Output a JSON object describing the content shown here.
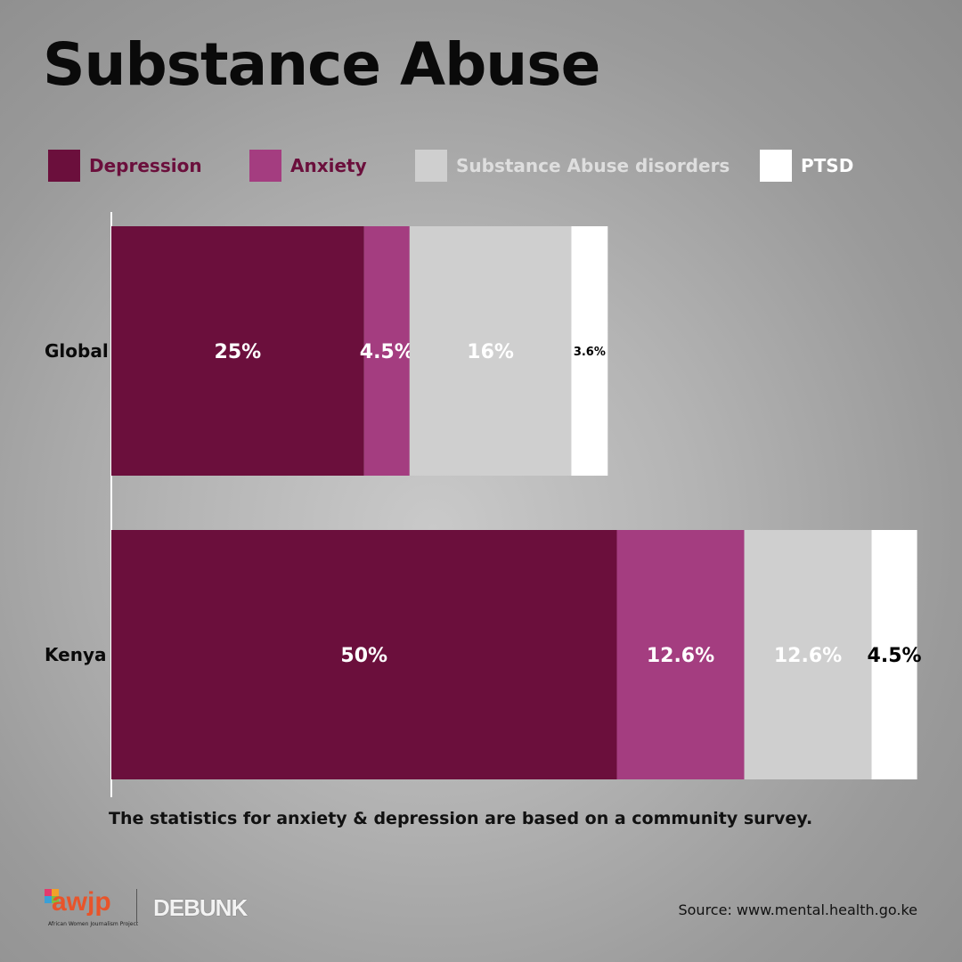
{
  "title": "Substance Abuse",
  "legend": [
    {
      "label": "Depression",
      "color": "#6b0f3c",
      "text_color": "#6b0f3c"
    },
    {
      "label": "Anxiety",
      "color": "#a43d80",
      "text_color": "#6b0f3c"
    },
    {
      "label": "Substance Abuse disorders",
      "color": "#cfcfcf",
      "text_color": "#dedede"
    },
    {
      "label": "PTSD",
      "color": "#ffffff",
      "text_color": "#ffffff"
    }
  ],
  "chart_data": {
    "type": "bar",
    "orientation": "horizontal",
    "stacked": true,
    "categories": [
      "Global",
      "Kenya"
    ],
    "series": [
      {
        "name": "Depression",
        "values": [
          25,
          50
        ],
        "labels": [
          "25%",
          "50%"
        ],
        "color": "#6b0f3c",
        "label_color": "#ffffff"
      },
      {
        "name": "Anxiety",
        "values": [
          4.5,
          12.6
        ],
        "labels": [
          "4.5%",
          "12.6%"
        ],
        "color": "#a43d80",
        "label_color": "#ffffff"
      },
      {
        "name": "Substance Abuse disorders",
        "values": [
          16,
          12.6
        ],
        "labels": [
          "16%",
          "12.6%"
        ],
        "color": "#cfcfcf",
        "label_color": "#ffffff"
      },
      {
        "name": "PTSD",
        "values": [
          3.6,
          4.5
        ],
        "labels": [
          "3.6%",
          "4.5%"
        ],
        "color": "#ffffff",
        "label_color": "#000000"
      }
    ],
    "grid": false,
    "legend_position": "top"
  },
  "footnote": "The statistics for anxiety & depression are based on a community survey.",
  "source": "Source: www.mental.health.go.ke",
  "logos": {
    "awjp": "awjp",
    "awjp_sub": "African Women Journalism Project",
    "debunk": "DEBUNK"
  }
}
